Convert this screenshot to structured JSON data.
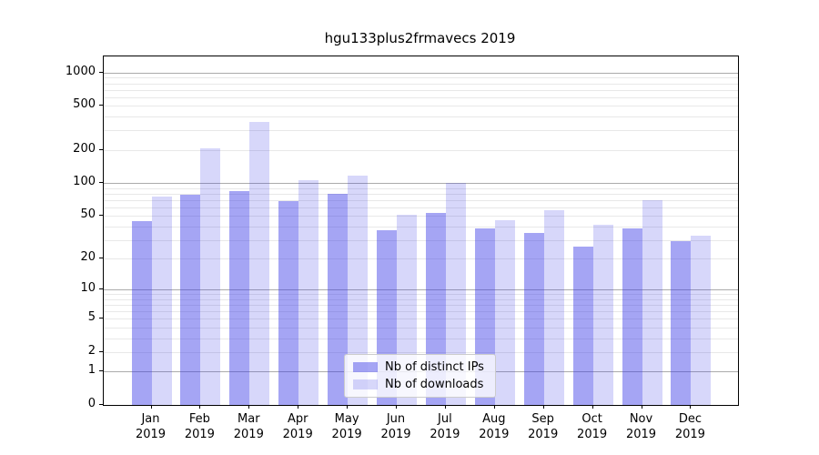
{
  "title": "hgu133plus2frmavecs 2019",
  "chart_data": {
    "type": "bar",
    "title": "hgu133plus2frmavecs 2019",
    "categories": [
      "Jan",
      "Feb",
      "Mar",
      "Apr",
      "May",
      "Jun",
      "Jul",
      "Aug",
      "Sep",
      "Oct",
      "Nov",
      "Dec"
    ],
    "year_label": "2019",
    "series": [
      {
        "name": "Nb of distinct IPs",
        "color": "rgba(55,55,230,0.45)",
        "values": [
          45,
          78,
          85,
          68,
          80,
          37,
          53,
          38,
          35,
          26,
          38,
          29
        ]
      },
      {
        "name": "Nb of downloads",
        "color": "rgba(55,55,230,0.2)",
        "values": [
          75,
          205,
          360,
          107,
          116,
          51,
          100,
          46,
          56,
          41,
          70,
          33
        ]
      }
    ],
    "yticks": [
      0,
      1,
      2,
      5,
      10,
      20,
      50,
      100,
      200,
      500,
      1000
    ],
    "scale": "log10(value+1)",
    "ymax": 1400,
    "xlabel": "",
    "ylabel": "",
    "grid": "horizontal major and minor",
    "legend_position": "bottom-center"
  },
  "colors": {
    "major_grid": "#ababab",
    "minor_grid": "#e8e8e8",
    "axis": "#000000",
    "legend_border": "#cccccc",
    "bar_distinct_ips": "rgba(55,55,230,0.45)",
    "bar_downloads": "rgba(55,55,230,0.2)"
  }
}
